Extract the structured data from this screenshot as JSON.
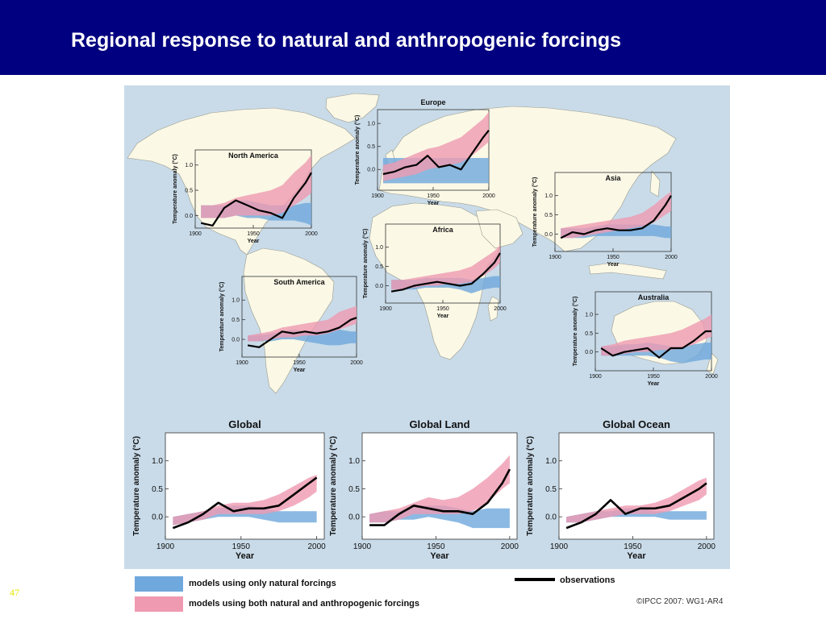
{
  "slide": {
    "title": "Regional response to natural and anthropogenic forcings",
    "slide_number": "47",
    "copyright": "©IPCC 2007: WG1-AR4"
  },
  "colors": {
    "header_bg": "#000080",
    "ocean": "#c9dbe9",
    "land": "#fbf8e6",
    "natural_band": "#6fa8dc",
    "both_band": "#ef9ab0",
    "observations": "#000000"
  },
  "legend": {
    "natural_label": "models using only natural forcings",
    "both_label": "models using both natural and anthropogenic forcings",
    "observations_label": "observations"
  },
  "chart_data": [
    {
      "type": "line",
      "title": "North America",
      "xlabel": "Year",
      "ylabel": "Temperature anomaly (°C)",
      "xlim": [
        1900,
        2000
      ],
      "ylim": [
        -0.25,
        1.3
      ],
      "xticks": [
        1900,
        1950,
        2000
      ],
      "yticks": [
        0.0,
        0.5,
        1.0
      ],
      "x": [
        1905,
        1915,
        1925,
        1935,
        1945,
        1955,
        1965,
        1975,
        1985,
        1995,
        2000
      ],
      "observations": [
        -0.15,
        -0.2,
        0.15,
        0.3,
        0.2,
        0.1,
        0.05,
        -0.05,
        0.35,
        0.65,
        0.85
      ],
      "natural": {
        "low": [
          -0.05,
          -0.05,
          -0.05,
          0.0,
          -0.05,
          -0.05,
          -0.1,
          -0.1,
          -0.1,
          -0.15,
          -0.2
        ],
        "high": [
          0.2,
          0.2,
          0.2,
          0.3,
          0.3,
          0.25,
          0.2,
          0.2,
          0.2,
          0.25,
          0.25
        ]
      },
      "both": {
        "low": [
          -0.05,
          -0.05,
          -0.05,
          0.0,
          0.0,
          0.0,
          0.0,
          0.05,
          0.2,
          0.35,
          0.45
        ],
        "high": [
          0.2,
          0.2,
          0.25,
          0.35,
          0.4,
          0.45,
          0.5,
          0.6,
          0.85,
          1.05,
          1.2
        ]
      }
    },
    {
      "type": "line",
      "title": "Europe",
      "xlabel": "Year",
      "ylabel": "Temperature anomaly (°C)",
      "xlim": [
        1900,
        2000
      ],
      "ylim": [
        -0.45,
        1.3
      ],
      "xticks": [
        1900,
        1950,
        2000
      ],
      "yticks": [
        0.0,
        0.5,
        1.0
      ],
      "x": [
        1905,
        1915,
        1925,
        1935,
        1945,
        1955,
        1965,
        1975,
        1985,
        1995,
        2000
      ],
      "observations": [
        -0.1,
        -0.05,
        0.05,
        0.1,
        0.3,
        0.05,
        0.1,
        0.0,
        0.35,
        0.7,
        0.85
      ],
      "natural": {
        "low": [
          -0.3,
          -0.3,
          -0.3,
          -0.3,
          -0.3,
          -0.3,
          -0.3,
          -0.3,
          -0.3,
          -0.3,
          -0.3
        ],
        "high": [
          0.25,
          0.25,
          0.25,
          0.25,
          0.25,
          0.25,
          0.25,
          0.25,
          0.25,
          0.25,
          0.25
        ]
      },
      "both": {
        "low": [
          -0.25,
          -0.2,
          -0.15,
          -0.1,
          0.0,
          0.05,
          0.1,
          0.15,
          0.3,
          0.5,
          0.6
        ],
        "high": [
          0.1,
          0.15,
          0.25,
          0.35,
          0.45,
          0.5,
          0.6,
          0.7,
          0.9,
          1.1,
          1.25
        ]
      }
    },
    {
      "type": "line",
      "title": "Asia",
      "xlabel": "Year",
      "ylabel": "Temperature anomaly (°C)",
      "xlim": [
        1900,
        2000
      ],
      "ylim": [
        -0.45,
        1.6
      ],
      "xticks": [
        1900,
        1950,
        2000
      ],
      "yticks": [
        0.0,
        0.5,
        1.0
      ],
      "x": [
        1905,
        1915,
        1925,
        1935,
        1945,
        1955,
        1965,
        1975,
        1985,
        1995,
        2000
      ],
      "observations": [
        -0.1,
        0.05,
        0.0,
        0.1,
        0.15,
        0.1,
        0.1,
        0.15,
        0.35,
        0.75,
        1.0
      ],
      "natural": {
        "low": [
          -0.1,
          -0.1,
          -0.1,
          -0.05,
          -0.05,
          -0.05,
          -0.05,
          -0.05,
          -0.05,
          -0.1,
          -0.1
        ],
        "high": [
          0.15,
          0.15,
          0.15,
          0.2,
          0.25,
          0.25,
          0.25,
          0.25,
          0.25,
          0.2,
          0.2
        ]
      },
      "both": {
        "low": [
          -0.1,
          -0.1,
          -0.05,
          0.0,
          0.05,
          0.1,
          0.15,
          0.2,
          0.3,
          0.5,
          0.6
        ],
        "high": [
          0.15,
          0.2,
          0.25,
          0.3,
          0.35,
          0.4,
          0.45,
          0.55,
          0.75,
          1.0,
          1.1
        ]
      }
    },
    {
      "type": "line",
      "title": "Africa",
      "xlabel": "Year",
      "ylabel": "Temperature anomaly (°C)",
      "xlim": [
        1900,
        2000
      ],
      "ylim": [
        -0.45,
        1.6
      ],
      "xticks": [
        1900,
        1950,
        2000
      ],
      "yticks": [
        0.0,
        0.5,
        1.0
      ],
      "x": [
        1905,
        1915,
        1925,
        1935,
        1945,
        1955,
        1965,
        1975,
        1985,
        1995,
        2000
      ],
      "observations": [
        -0.15,
        -0.1,
        0.0,
        0.05,
        0.1,
        0.05,
        0.0,
        0.05,
        0.3,
        0.6,
        0.85
      ],
      "natural": {
        "low": [
          -0.1,
          -0.1,
          -0.1,
          -0.05,
          -0.05,
          -0.05,
          -0.1,
          -0.2,
          -0.1,
          -0.05,
          -0.05
        ],
        "high": [
          0.15,
          0.15,
          0.15,
          0.2,
          0.2,
          0.2,
          0.2,
          0.15,
          0.2,
          0.25,
          0.25
        ]
      },
      "both": {
        "low": [
          -0.1,
          -0.1,
          -0.05,
          0.0,
          0.0,
          0.05,
          0.05,
          0.1,
          0.25,
          0.45,
          0.6
        ],
        "high": [
          0.15,
          0.15,
          0.2,
          0.25,
          0.3,
          0.35,
          0.4,
          0.5,
          0.7,
          0.9,
          1.05
        ]
      }
    },
    {
      "type": "line",
      "title": "South America",
      "xlabel": "Year",
      "ylabel": "Temperature anomaly (°C)",
      "xlim": [
        1900,
        2000
      ],
      "ylim": [
        -0.45,
        1.6
      ],
      "xticks": [
        1900,
        1950,
        2000
      ],
      "yticks": [
        0.0,
        0.5,
        1.0
      ],
      "x": [
        1905,
        1915,
        1925,
        1935,
        1945,
        1955,
        1965,
        1975,
        1985,
        1995,
        2000
      ],
      "observations": [
        -0.15,
        -0.2,
        0.0,
        0.2,
        0.15,
        0.2,
        0.15,
        0.2,
        0.3,
        0.5,
        0.55
      ],
      "natural": {
        "low": [
          -0.05,
          -0.05,
          -0.05,
          0.0,
          0.0,
          -0.05,
          -0.1,
          -0.15,
          -0.15,
          -0.1,
          -0.1
        ],
        "high": [
          0.1,
          0.1,
          0.15,
          0.2,
          0.25,
          0.2,
          0.2,
          0.2,
          0.25,
          0.2,
          0.2
        ]
      },
      "both": {
        "low": [
          -0.05,
          -0.05,
          0.0,
          0.05,
          0.05,
          0.1,
          0.1,
          0.15,
          0.25,
          0.35,
          0.4
        ],
        "high": [
          0.1,
          0.15,
          0.2,
          0.3,
          0.35,
          0.4,
          0.45,
          0.5,
          0.7,
          0.8,
          0.85
        ]
      }
    },
    {
      "type": "line",
      "title": "Australia",
      "xlabel": "Year",
      "ylabel": "Temperature anomaly (°C)",
      "xlim": [
        1900,
        2000
      ],
      "ylim": [
        -0.5,
        1.6
      ],
      "xticks": [
        1900,
        1950,
        2000
      ],
      "yticks": [
        0.0,
        0.5,
        1.0
      ],
      "x": [
        1905,
        1915,
        1925,
        1935,
        1945,
        1955,
        1965,
        1975,
        1985,
        1995,
        2000
      ],
      "observations": [
        0.1,
        -0.1,
        0.0,
        0.05,
        0.1,
        -0.15,
        0.1,
        0.1,
        0.3,
        0.55,
        0.55
      ],
      "natural": {
        "low": [
          -0.1,
          -0.1,
          -0.1,
          -0.1,
          -0.1,
          -0.15,
          -0.25,
          -0.3,
          -0.25,
          -0.2,
          -0.2
        ],
        "high": [
          0.15,
          0.15,
          0.2,
          0.2,
          0.25,
          0.2,
          0.15,
          0.15,
          0.2,
          0.25,
          0.25
        ]
      },
      "both": {
        "low": [
          -0.1,
          -0.1,
          -0.05,
          0.0,
          0.0,
          0.05,
          0.05,
          0.1,
          0.2,
          0.35,
          0.4
        ],
        "high": [
          0.15,
          0.2,
          0.3,
          0.35,
          0.4,
          0.45,
          0.5,
          0.6,
          0.75,
          0.9,
          1.0
        ]
      }
    },
    {
      "type": "line",
      "title": "Global",
      "xlabel": "Year",
      "ylabel": "Temperature anomaly (°C)",
      "xlim": [
        1900,
        2005
      ],
      "ylim": [
        -0.4,
        1.5
      ],
      "xticks": [
        1900,
        1950,
        2000
      ],
      "yticks": [
        0.0,
        0.5,
        1.0
      ],
      "x": [
        1905,
        1915,
        1925,
        1935,
        1945,
        1955,
        1965,
        1975,
        1985,
        1995,
        2000
      ],
      "observations": [
        -0.2,
        -0.1,
        0.05,
        0.25,
        0.1,
        0.15,
        0.15,
        0.2,
        0.4,
        0.6,
        0.7
      ],
      "natural": {
        "low": [
          -0.15,
          -0.1,
          -0.05,
          0.0,
          0.0,
          0.0,
          -0.05,
          -0.1,
          -0.1,
          -0.1,
          -0.1
        ],
        "high": [
          0.0,
          0.05,
          0.1,
          0.15,
          0.2,
          0.2,
          0.15,
          0.1,
          0.1,
          0.1,
          0.1
        ]
      },
      "both": {
        "low": [
          -0.15,
          -0.1,
          -0.05,
          0.05,
          0.05,
          0.05,
          0.05,
          0.1,
          0.2,
          0.35,
          0.45
        ],
        "high": [
          0.0,
          0.05,
          0.1,
          0.2,
          0.25,
          0.25,
          0.3,
          0.4,
          0.55,
          0.7,
          0.75
        ]
      }
    },
    {
      "type": "line",
      "title": "Global Land",
      "xlabel": "Year",
      "ylabel": "Temperature anomaly (°C)",
      "xlim": [
        1900,
        2005
      ],
      "ylim": [
        -0.4,
        1.5
      ],
      "xticks": [
        1900,
        1950,
        2000
      ],
      "yticks": [
        0.0,
        0.5,
        1.0
      ],
      "x": [
        1905,
        1915,
        1925,
        1935,
        1945,
        1955,
        1965,
        1975,
        1985,
        1995,
        2000
      ],
      "observations": [
        -0.15,
        -0.15,
        0.05,
        0.2,
        0.15,
        0.1,
        0.1,
        0.05,
        0.25,
        0.6,
        0.85
      ],
      "natural": {
        "low": [
          -0.1,
          -0.1,
          -0.05,
          -0.05,
          0.0,
          -0.05,
          -0.1,
          -0.2,
          -0.2,
          -0.2,
          -0.2
        ],
        "high": [
          0.05,
          0.1,
          0.1,
          0.2,
          0.2,
          0.2,
          0.15,
          0.1,
          0.15,
          0.15,
          0.15
        ]
      },
      "both": {
        "low": [
          -0.1,
          -0.1,
          -0.05,
          0.05,
          0.05,
          0.05,
          0.05,
          0.1,
          0.25,
          0.5,
          0.6
        ],
        "high": [
          0.05,
          0.1,
          0.15,
          0.25,
          0.35,
          0.3,
          0.35,
          0.5,
          0.7,
          0.95,
          1.1
        ]
      }
    },
    {
      "type": "line",
      "title": "Global Ocean",
      "xlabel": "Year",
      "ylabel": "Temperature anomaly (°C)",
      "xlim": [
        1900,
        2005
      ],
      "ylim": [
        -0.4,
        1.5
      ],
      "xticks": [
        1900,
        1950,
        2000
      ],
      "yticks": [
        0.0,
        0.5,
        1.0
      ],
      "x": [
        1905,
        1915,
        1925,
        1935,
        1945,
        1955,
        1965,
        1975,
        1985,
        1995,
        2000
      ],
      "observations": [
        -0.2,
        -0.1,
        0.05,
        0.3,
        0.05,
        0.15,
        0.15,
        0.2,
        0.35,
        0.5,
        0.6
      ],
      "natural": {
        "low": [
          -0.1,
          -0.1,
          -0.05,
          0.0,
          0.0,
          0.0,
          0.0,
          -0.05,
          -0.05,
          -0.05,
          -0.05
        ],
        "high": [
          0.0,
          0.05,
          0.1,
          0.1,
          0.15,
          0.15,
          0.1,
          0.1,
          0.1,
          0.1,
          0.1
        ]
      },
      "both": {
        "low": [
          -0.1,
          -0.1,
          -0.05,
          0.0,
          0.05,
          0.05,
          0.05,
          0.1,
          0.2,
          0.3,
          0.4
        ],
        "high": [
          0.0,
          0.05,
          0.1,
          0.15,
          0.2,
          0.2,
          0.25,
          0.35,
          0.5,
          0.65,
          0.7
        ]
      }
    }
  ]
}
